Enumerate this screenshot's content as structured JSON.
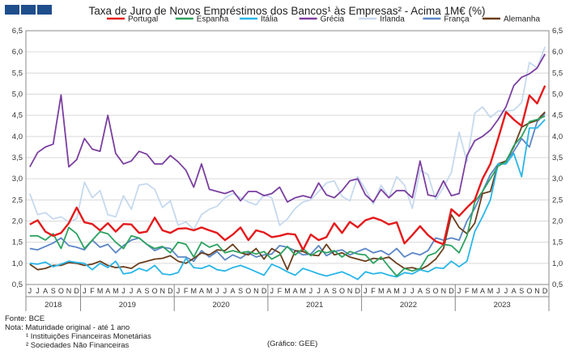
{
  "title": "Taxa de Juro de Novos Empréstimos dos Bancos¹ às Empresas² - Acima 1M€ (%)",
  "notes": {
    "source": "Fonte: BCE",
    "note": "Nota: Maturidade original - até 1 ano",
    "footnote1": "¹ Instituições Financeiras Monetárias",
    "footnote2": "² Sociedades Não Financeiras",
    "credit": "(Gráfico: GEE)"
  },
  "chart_data": {
    "type": "line",
    "ylim": [
      0.5,
      6.5
    ],
    "yticks": [
      "0,5",
      "1,0",
      "1,5",
      "2,0",
      "2,5",
      "3,0",
      "3,5",
      "4,0",
      "4,5",
      "5,0",
      "5,5",
      "6,0",
      "6,5"
    ],
    "month_labels": [
      "J",
      "J",
      "A",
      "S",
      "O",
      "N",
      "D",
      "J",
      "F",
      "M",
      "A",
      "M",
      "J",
      "J",
      "A",
      "S",
      "O",
      "N",
      "D",
      "J",
      "F",
      "M",
      "A",
      "M",
      "J",
      "J",
      "A",
      "S",
      "O",
      "N",
      "D",
      "J",
      "F",
      "M",
      "A",
      "M",
      "J",
      "J",
      "A",
      "S",
      "O",
      "N",
      "D",
      "J",
      "F",
      "M",
      "A",
      "M",
      "J",
      "J",
      "A",
      "S",
      "O",
      "N",
      "D",
      "J",
      "F",
      "M",
      "A",
      "M"
    ],
    "year_labels": [
      {
        "label": "2018",
        "from": 0,
        "to": 6
      },
      {
        "label": "2019",
        "from": 7,
        "to": 18
      },
      {
        "label": "2020",
        "from": 19,
        "to": 30
      },
      {
        "label": "2021",
        "from": 31,
        "to": 42
      },
      {
        "label": "2022",
        "from": 43,
        "to": 54
      },
      {
        "label": "2023",
        "from": 55,
        "to": 59
      }
    ],
    "grid": "horizontal",
    "legend_position": "top",
    "series": [
      {
        "name": "Portugal",
        "color": "#e41a1c",
        "values": [
          1.92,
          2.02,
          1.75,
          1.65,
          1.72,
          1.95,
          2.32,
          1.97,
          1.93,
          1.78,
          1.95,
          1.75,
          1.93,
          1.92,
          1.72,
          1.75,
          2.08,
          1.78,
          1.72,
          1.82,
          1.83,
          1.78,
          1.85,
          1.78,
          1.72,
          1.55,
          1.68,
          1.85,
          1.55,
          1.78,
          1.73,
          1.62,
          1.65,
          1.7,
          1.68,
          1.32,
          1.68,
          1.55,
          1.62,
          1.95,
          1.72,
          1.98,
          1.85,
          2.02,
          2.08,
          2.02,
          1.92,
          1.97,
          1.47,
          1.67,
          1.88,
          1.67,
          1.52,
          1.45,
          2.28,
          2.12,
          2.32,
          2.5,
          3.0,
          3.35
        ]
      },
      {
        "name": "Espanha",
        "color": "#2ca25f",
        "values": [
          1.65,
          1.65,
          1.55,
          1.7,
          1.35,
          1.85,
          1.7,
          1.35,
          1.55,
          1.75,
          1.7,
          1.5,
          1.35,
          1.65,
          1.6,
          1.45,
          1.35,
          1.4,
          1.25,
          1.5,
          1.45,
          1.15,
          1.5,
          1.38,
          1.45,
          1.25,
          1.3,
          1.25,
          1.28,
          1.22,
          1.28,
          1.1,
          1.2,
          1.4,
          1.2,
          1.35,
          1.18,
          1.3,
          1.25,
          1.3,
          1.15,
          1.28,
          1.22,
          1.2,
          1.0,
          1.15,
          0.92,
          0.7,
          0.88,
          0.82,
          0.88,
          1.18,
          1.25,
          1.45,
          1.42,
          1.25,
          1.65,
          2.45,
          2.7,
          3.0
        ]
      },
      {
        "name": "Itália",
        "color": "#29b6e8",
        "values": [
          1.0,
          0.98,
          1.03,
          0.92,
          0.98,
          1.05,
          1.02,
          1.0,
          0.85,
          1.0,
          0.9,
          1.05,
          0.75,
          0.78,
          0.88,
          0.82,
          0.95,
          0.75,
          0.73,
          0.78,
          1.12,
          0.9,
          0.88,
          0.95,
          0.85,
          0.82,
          0.9,
          0.95,
          0.88,
          0.8,
          0.72,
          0.98,
          0.9,
          0.8,
          0.72,
          0.88,
          0.82,
          0.75,
          0.7,
          0.75,
          0.8,
          0.72,
          0.62,
          0.8,
          0.75,
          0.78,
          0.72,
          0.68,
          0.78,
          0.75,
          0.85,
          0.8,
          0.9,
          0.88,
          1.05,
          0.92,
          1.05,
          1.75,
          2.1,
          2.5
        ]
      },
      {
        "name": "Grécia",
        "color": "#7b3fa0",
        "values": [
          3.28,
          3.62,
          3.75,
          3.82,
          4.98,
          3.28,
          3.45,
          3.95,
          3.7,
          3.65,
          4.5,
          3.6,
          3.35,
          3.42,
          3.65,
          3.58,
          3.35,
          3.35,
          3.55,
          3.4,
          3.2,
          2.8,
          3.35,
          2.75,
          2.7,
          2.65,
          2.72,
          2.48,
          2.7,
          2.7,
          2.6,
          2.65,
          2.8,
          2.45,
          2.55,
          2.6,
          2.55,
          2.9,
          2.62,
          2.55,
          2.72,
          2.95,
          3.0,
          2.62,
          2.45,
          2.75,
          2.55,
          2.72,
          2.72,
          2.55,
          3.42,
          2.62,
          2.58,
          2.95,
          2.6,
          2.65,
          3.55,
          3.9,
          4.0,
          4.15
        ]
      },
      {
        "name": "Irlanda",
        "color": "#c6d9ee",
        "values": [
          2.65,
          2.15,
          2.2,
          2.05,
          2.1,
          1.98,
          2.05,
          2.92,
          2.55,
          2.72,
          2.15,
          2.1,
          2.6,
          2.28,
          2.85,
          2.88,
          2.75,
          2.32,
          2.48,
          1.9,
          1.98,
          1.8,
          2.15,
          2.28,
          2.35,
          2.55,
          2.65,
          2.55,
          2.45,
          2.38,
          2.62,
          2.55,
          1.9,
          2.05,
          2.3,
          2.45,
          2.5,
          2.7,
          2.9,
          2.95,
          2.58,
          2.48,
          3.05,
          2.75,
          2.4,
          2.85,
          2.55,
          3.05,
          2.85,
          2.3,
          3.2,
          3.1,
          2.5,
          2.8,
          3.15,
          4.1,
          3.4,
          4.55,
          4.7,
          4.45
        ]
      },
      {
        "name": "França",
        "color": "#5b86c6",
        "values": [
          1.35,
          1.32,
          1.4,
          1.48,
          1.6,
          1.42,
          1.38,
          1.32,
          1.55,
          1.38,
          1.45,
          1.25,
          1.42,
          1.55,
          1.6,
          1.45,
          1.3,
          1.38,
          1.35,
          1.15,
          1.15,
          1.05,
          1.3,
          1.15,
          1.28,
          1.08,
          1.2,
          1.12,
          1.25,
          1.15,
          1.2,
          1.22,
          1.42,
          1.38,
          1.3,
          1.2,
          1.22,
          1.42,
          1.18,
          1.28,
          1.32,
          1.2,
          1.28,
          1.35,
          1.25,
          1.3,
          1.2,
          1.35,
          1.15,
          1.25,
          1.2,
          1.3,
          1.6,
          1.55,
          1.6,
          1.55,
          2.0,
          2.3,
          2.7,
          3.1
        ]
      },
      {
        "name": "Alemanha",
        "color": "#6b3e1c",
        "values": [
          0.98,
          0.85,
          0.88,
          0.95,
          0.95,
          1.02,
          1.0,
          0.95,
          0.98,
          1.05,
          0.95,
          0.9,
          0.92,
          0.88,
          1.0,
          1.05,
          1.1,
          1.12,
          1.18,
          1.05,
          1.0,
          1.12,
          1.25,
          1.2,
          1.32,
          1.3,
          1.45,
          1.25,
          1.2,
          1.35,
          1.1,
          1.35,
          1.25,
          0.85,
          1.3,
          1.28,
          1.2,
          1.18,
          1.45,
          1.2,
          1.25,
          1.15,
          1.1,
          1.05,
          1.12,
          1.1,
          1.15,
          1.0,
          0.88,
          0.9,
          0.85,
          0.95,
          1.1,
          1.35,
          2.15,
          1.85,
          1.7,
          1.95,
          2.65,
          2.7
        ]
      }
    ],
    "continuations": {
      "note": "values for the last months (continuing each series)",
      "Portugal": [
        3.95,
        4.58,
        4.4,
        4.25,
        4.97,
        4.78,
        5.2
      ],
      "Espanha": [
        3.3,
        3.4,
        3.78,
        4.0,
        4.35,
        4.4,
        4.48
      ],
      "Itália": [
        3.35,
        3.35,
        3.6,
        3.05,
        4.2,
        4.2,
        4.4
      ],
      "Grécia": [
        4.4,
        4.7,
        5.2,
        5.4,
        5.48,
        5.62,
        5.95
      ],
      "Irlanda": [
        4.6,
        4.6,
        4.62,
        4.8,
        5.75,
        5.62,
        6.12
      ],
      "França": [
        3.35,
        3.42,
        3.65,
        3.95,
        3.75,
        4.35,
        4.55
      ],
      "Alemanha": [
        3.35,
        3.42,
        3.75,
        4.22,
        4.32,
        4.38,
        4.58
      ]
    }
  }
}
